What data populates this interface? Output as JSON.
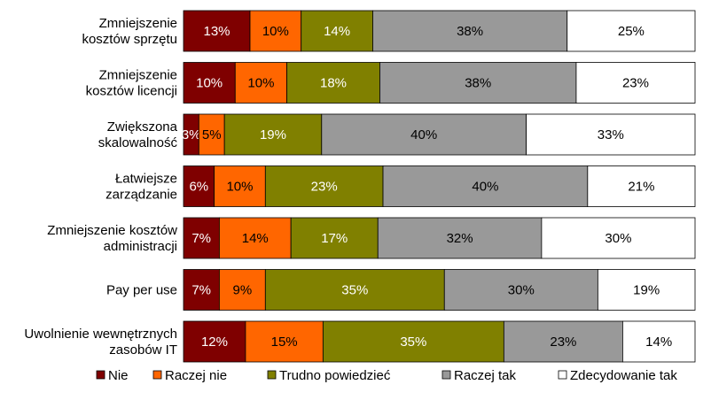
{
  "chart_data": {
    "type": "bar",
    "orientation": "horizontal",
    "stacked": "percent",
    "categories": [
      [
        "Zmniejszenie",
        "kosztów sprzętu"
      ],
      [
        "Zmniejszenie",
        "kosztów licencji"
      ],
      [
        "Zwiększona",
        "skalowalność"
      ],
      [
        "Łatwiejsze",
        "zarządzanie"
      ],
      [
        "Zmniejszenie kosztów",
        "administracji"
      ],
      [
        "Pay per use"
      ],
      [
        "Uwolnienie wewnętrznych",
        "zasobów IT"
      ]
    ],
    "series": [
      {
        "name": "Nie",
        "color": "#7f0000",
        "text_color": "#ffffff",
        "values": [
          13,
          10,
          3,
          6,
          7,
          7,
          12
        ]
      },
      {
        "name": "Raczej nie",
        "color": "#ff6600",
        "text_color": "#000000",
        "values": [
          10,
          10,
          5,
          10,
          14,
          9,
          15
        ]
      },
      {
        "name": "Trudno powiedzieć",
        "color": "#808000",
        "text_color": "#ffffff",
        "values": [
          14,
          18,
          19,
          23,
          17,
          35,
          35
        ]
      },
      {
        "name": "Raczej tak",
        "color": "#999999",
        "text_color": "#000000",
        "values": [
          38,
          38,
          40,
          40,
          32,
          30,
          23
        ]
      },
      {
        "name": "Zdecydowanie tak",
        "color": "#ffffff",
        "text_color": "#000000",
        "values": [
          25,
          23,
          33,
          21,
          30,
          19,
          14
        ]
      }
    ],
    "value_suffix": "%",
    "legend_position": "bottom",
    "grid": false
  }
}
